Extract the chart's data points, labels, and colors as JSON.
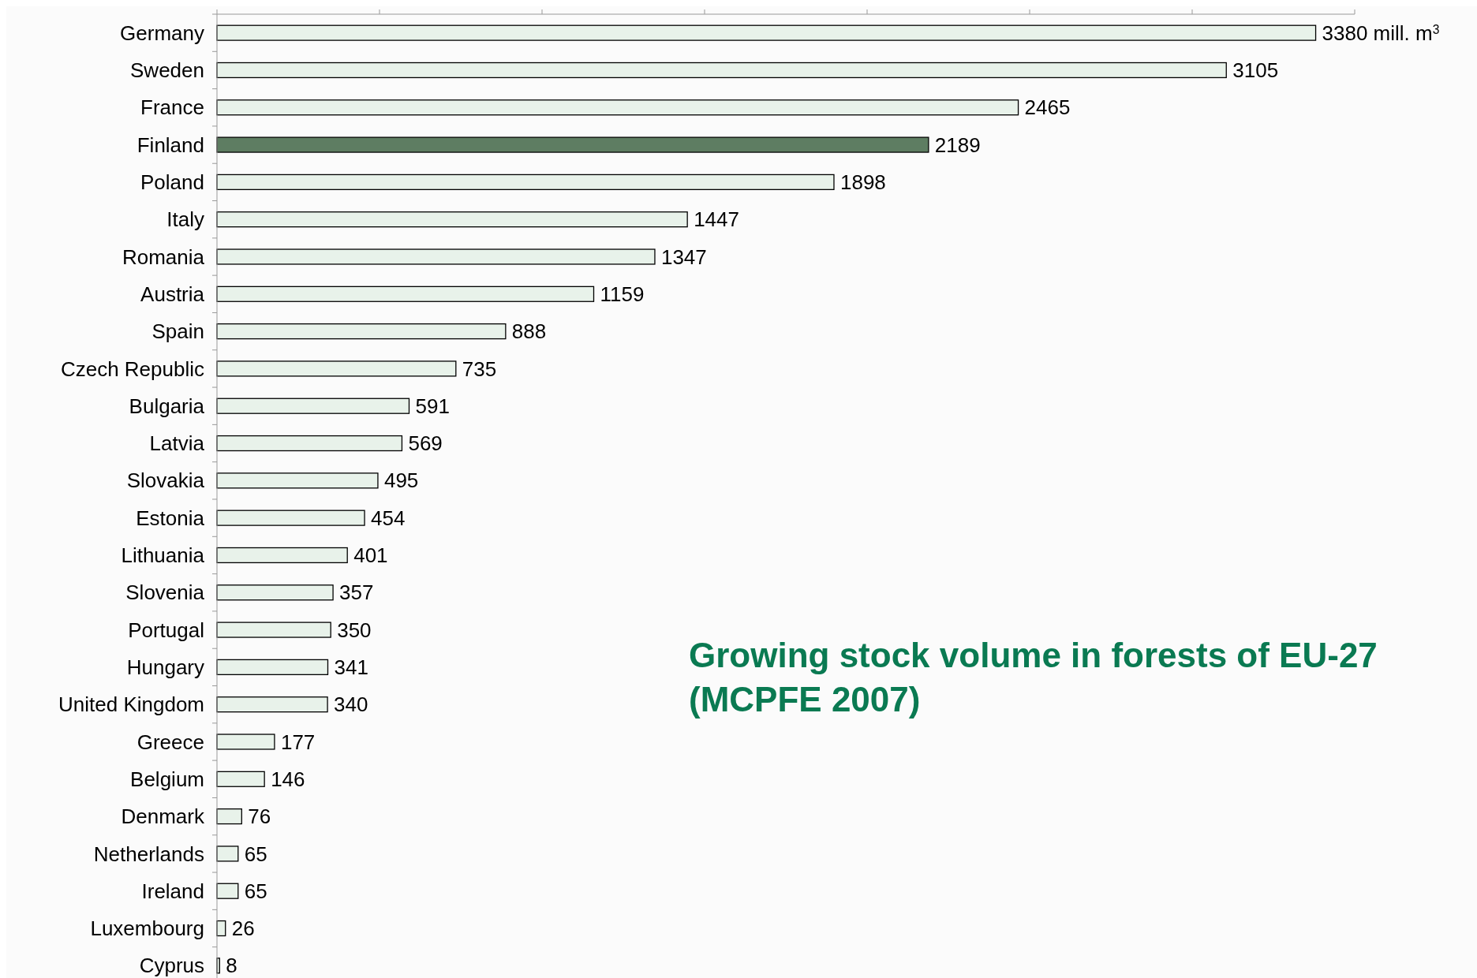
{
  "chart_data": {
    "type": "bar",
    "orientation": "horizontal",
    "title": "Growing stock volume in forests of EU-27 (MCPFE 2007)",
    "categories": [
      "Germany",
      "Sweden",
      "France",
      "Finland",
      "Poland",
      "Italy",
      "Romania",
      "Austria",
      "Spain",
      "Czech Republic",
      "Bulgaria",
      "Latvia",
      "Slovakia",
      "Estonia",
      "Lithuania",
      "Slovenia",
      "Portugal",
      "Hungary",
      "United Kingdom",
      "Greece",
      "Belgium",
      "Denmark",
      "Netherlands",
      "Ireland",
      "Luxembourg",
      "Cyprus"
    ],
    "values": [
      3380,
      3105,
      2465,
      2189,
      1898,
      1447,
      1347,
      1159,
      888,
      735,
      591,
      569,
      495,
      454,
      401,
      357,
      350,
      341,
      340,
      177,
      146,
      76,
      65,
      65,
      26,
      8
    ],
    "value_labels": [
      "3380 mill. m$^{3}$",
      "3105",
      "2465",
      "2189",
      "1898",
      "1447",
      "1347",
      "1159",
      "888",
      "735",
      "591",
      "569",
      "495",
      "454",
      "401",
      "357",
      "350",
      "341",
      "340",
      "177",
      "146",
      "76",
      "65",
      "65",
      "26",
      "8"
    ],
    "colors": [
      "#e8f2ea",
      "#e8f2ea",
      "#e8f2ea",
      "#5e7d62",
      "#e8f2ea",
      "#e8f2ea",
      "#e8f2ea",
      "#e8f2ea",
      "#e8f2ea",
      "#e8f2ea",
      "#e8f2ea",
      "#e8f2ea",
      "#e8f2ea",
      "#e8f2ea",
      "#e8f2ea",
      "#e8f2ea",
      "#e8f2ea",
      "#e8f2ea",
      "#e8f2ea",
      "#e8f2ea",
      "#e8f2ea",
      "#e8f2ea",
      "#e8f2ea",
      "#e8f2ea",
      "#e8f2ea",
      "#e8f2ea"
    ],
    "xlim": [
      0,
      3500
    ],
    "xticks": [
      {
        "value": 0,
        "label": null
      },
      {
        "value": 500,
        "label": null
      },
      {
        "value": 1000,
        "label": null
      },
      {
        "value": 1500,
        "label": null
      },
      {
        "value": 2000,
        "label": null
      },
      {
        "value": 2500,
        "label": null
      },
      {
        "value": 3000,
        "label": null
      },
      {
        "value": 3500,
        "label": null
      }
    ],
    "tick_labels": "y"
  }
}
